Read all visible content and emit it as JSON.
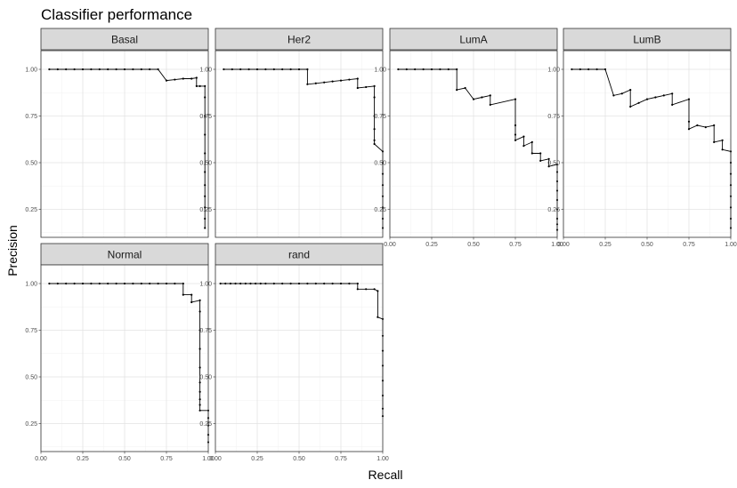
{
  "chart_data": {
    "type": "line",
    "title": "Classifier performance",
    "xlabel": "Recall",
    "ylabel": "Precision",
    "xlim": [
      0,
      1
    ],
    "ylim": [
      0.1,
      1.1
    ],
    "x_ticks": [
      "0.00",
      "0.25",
      "0.50",
      "0.75",
      "1.00"
    ],
    "y_ticks": [
      "0.25",
      "0.50",
      "0.75",
      "1.00"
    ],
    "grid": true,
    "line_color": "#000000",
    "facets": [
      {
        "name": "Basal",
        "x": [
          0.05,
          0.1,
          0.15,
          0.2,
          0.25,
          0.3,
          0.35,
          0.4,
          0.45,
          0.5,
          0.55,
          0.6,
          0.65,
          0.7,
          0.75,
          0.8,
          0.85,
          0.9,
          0.93,
          0.93,
          0.95,
          0.98,
          0.98,
          0.98,
          0.98,
          0.98,
          0.98,
          0.98,
          0.98,
          0.98,
          0.98,
          0.98
        ],
        "y": [
          1.0,
          1.0,
          1.0,
          1.0,
          1.0,
          1.0,
          1.0,
          1.0,
          1.0,
          1.0,
          1.0,
          1.0,
          1.0,
          1.0,
          0.94,
          0.945,
          0.95,
          0.95,
          0.955,
          0.91,
          0.91,
          0.91,
          0.85,
          0.75,
          0.65,
          0.55,
          0.45,
          0.38,
          0.32,
          0.26,
          0.2,
          0.15
        ]
      },
      {
        "name": "Her2",
        "x": [
          0.05,
          0.1,
          0.15,
          0.2,
          0.25,
          0.3,
          0.35,
          0.4,
          0.45,
          0.5,
          0.55,
          0.55,
          0.6,
          0.65,
          0.7,
          0.75,
          0.8,
          0.85,
          0.85,
          0.9,
          0.95,
          0.95,
          0.95,
          0.95,
          0.95,
          0.95,
          1.0,
          1.0,
          1.0,
          1.0,
          1.0,
          1.0,
          1.0,
          1.0
        ],
        "y": [
          1.0,
          1.0,
          1.0,
          1.0,
          1.0,
          1.0,
          1.0,
          1.0,
          1.0,
          1.0,
          1.0,
          0.92,
          0.925,
          0.93,
          0.935,
          0.94,
          0.945,
          0.95,
          0.9,
          0.905,
          0.91,
          0.85,
          0.75,
          0.68,
          0.62,
          0.6,
          0.56,
          0.5,
          0.44,
          0.38,
          0.32,
          0.26,
          0.2,
          0.15
        ]
      },
      {
        "name": "LumA",
        "x": [
          0.05,
          0.1,
          0.15,
          0.2,
          0.25,
          0.3,
          0.35,
          0.4,
          0.4,
          0.45,
          0.5,
          0.55,
          0.6,
          0.6,
          0.75,
          0.75,
          0.75,
          0.75,
          0.8,
          0.8,
          0.85,
          0.85,
          0.9,
          0.9,
          0.95,
          0.95,
          1.0,
          1.0,
          1.0,
          1.0,
          1.0,
          1.0,
          1.0,
          1.0,
          1.0
        ],
        "y": [
          1.0,
          1.0,
          1.0,
          1.0,
          1.0,
          1.0,
          1.0,
          1.0,
          0.89,
          0.9,
          0.84,
          0.85,
          0.86,
          0.81,
          0.84,
          0.7,
          0.65,
          0.62,
          0.64,
          0.59,
          0.61,
          0.55,
          0.55,
          0.51,
          0.52,
          0.48,
          0.49,
          0.45,
          0.4,
          0.35,
          0.3,
          0.25,
          0.2,
          0.17,
          0.14
        ]
      },
      {
        "name": "LumB",
        "x": [
          0.05,
          0.1,
          0.15,
          0.2,
          0.25,
          0.3,
          0.35,
          0.4,
          0.4,
          0.45,
          0.5,
          0.55,
          0.6,
          0.65,
          0.65,
          0.75,
          0.75,
          0.75,
          0.8,
          0.85,
          0.9,
          0.9,
          0.95,
          0.95,
          1.0,
          1.0,
          1.0,
          1.0,
          1.0,
          1.0,
          1.0,
          1.0
        ],
        "y": [
          1.0,
          1.0,
          1.0,
          1.0,
          1.0,
          0.86,
          0.87,
          0.89,
          0.8,
          0.82,
          0.84,
          0.85,
          0.86,
          0.87,
          0.81,
          0.84,
          0.72,
          0.68,
          0.7,
          0.69,
          0.7,
          0.61,
          0.62,
          0.57,
          0.56,
          0.5,
          0.44,
          0.38,
          0.32,
          0.26,
          0.2,
          0.15
        ]
      },
      {
        "name": "Normal",
        "x": [
          0.05,
          0.1,
          0.15,
          0.2,
          0.25,
          0.3,
          0.35,
          0.4,
          0.45,
          0.5,
          0.55,
          0.6,
          0.65,
          0.7,
          0.75,
          0.8,
          0.85,
          0.85,
          0.9,
          0.9,
          0.95,
          0.95,
          0.95,
          0.95,
          0.95,
          0.95,
          0.95,
          0.95,
          0.95,
          0.95,
          1.0,
          1.0,
          1.0,
          1.0,
          1.0
        ],
        "y": [
          1.0,
          1.0,
          1.0,
          1.0,
          1.0,
          1.0,
          1.0,
          1.0,
          1.0,
          1.0,
          1.0,
          1.0,
          1.0,
          1.0,
          1.0,
          1.0,
          1.0,
          0.94,
          0.94,
          0.9,
          0.91,
          0.85,
          0.75,
          0.65,
          0.55,
          0.47,
          0.42,
          0.38,
          0.35,
          0.32,
          0.32,
          0.28,
          0.24,
          0.19,
          0.15
        ]
      },
      {
        "name": "rand",
        "x": [
          0.03,
          0.06,
          0.09,
          0.12,
          0.15,
          0.18,
          0.21,
          0.24,
          0.27,
          0.3,
          0.35,
          0.4,
          0.45,
          0.5,
          0.55,
          0.6,
          0.65,
          0.7,
          0.75,
          0.8,
          0.85,
          0.85,
          0.9,
          0.95,
          0.97,
          0.97,
          1.0,
          1.0,
          1.0,
          1.0,
          1.0,
          1.0,
          1.0,
          1.0
        ],
        "y": [
          1.0,
          1.0,
          1.0,
          1.0,
          1.0,
          1.0,
          1.0,
          1.0,
          1.0,
          1.0,
          1.0,
          1.0,
          1.0,
          1.0,
          1.0,
          1.0,
          1.0,
          1.0,
          1.0,
          1.0,
          1.0,
          0.97,
          0.97,
          0.97,
          0.96,
          0.82,
          0.81,
          0.72,
          0.64,
          0.56,
          0.48,
          0.4,
          0.33,
          0.29
        ]
      }
    ]
  }
}
